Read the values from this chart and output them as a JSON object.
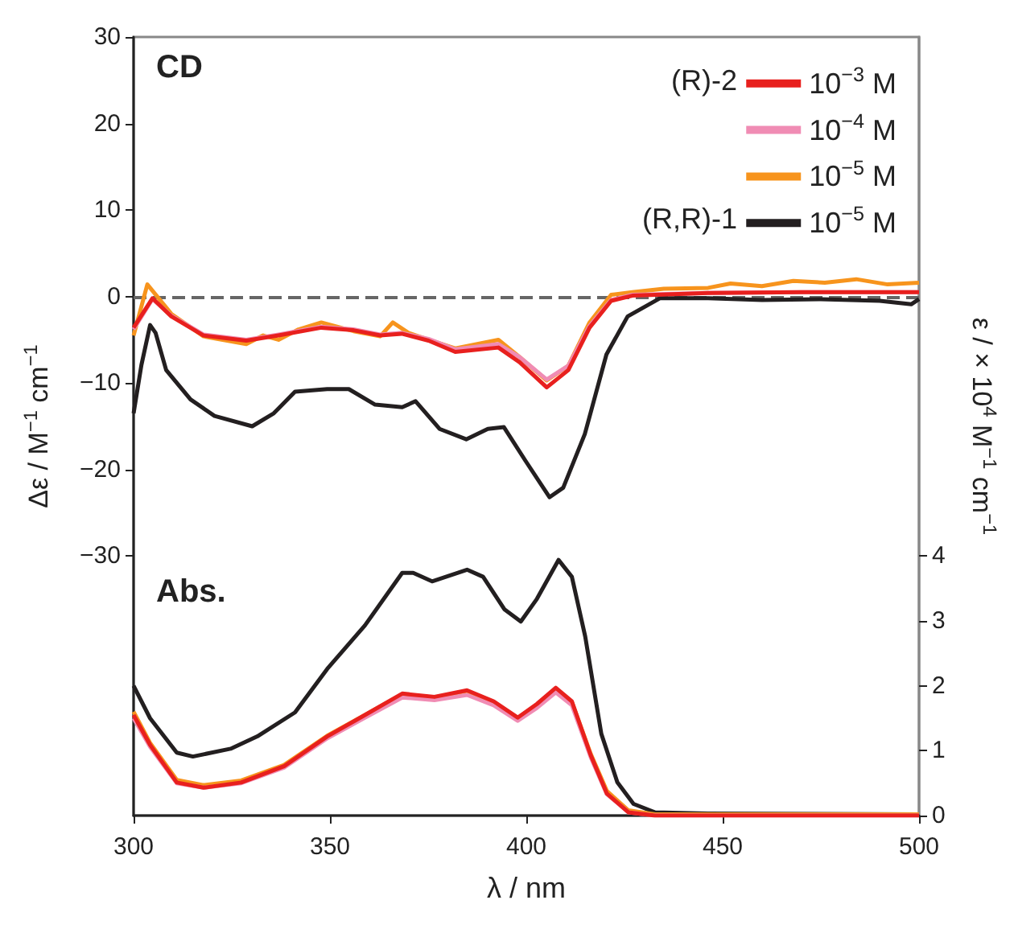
{
  "chart_data": {
    "type": "line",
    "xlabel": "λ / nm",
    "ylabel": "Δε / M$^{−1}$ cm$^{−1}$",
    "y2label": "ε / × 10$^{4}$ M$^{−1}$ cm$^{−1}$",
    "annotations": [
      "CD",
      "Abs.",
      "(R)-2",
      "(R,R)-1"
    ],
    "xlim": [
      300,
      500
    ],
    "xticks": [
      300,
      350,
      400,
      450,
      500
    ],
    "ylim": [
      -60,
      30
    ],
    "yticks": [
      -30,
      -20,
      -10,
      0,
      10,
      20,
      30
    ],
    "y2lim": [
      0,
      12
    ],
    "y2ticks": [
      0,
      1,
      2,
      3,
      4
    ],
    "legend": "top right",
    "grid": false,
    "ref_lines": [
      {
        "axis": "y",
        "value": 0,
        "color": "#666666",
        "line_style": "dashed"
      }
    ],
    "series": [
      {
        "name": "10$^{−3}$ M",
        "color": "#e8201e",
        "x": [
          300,
          304.8,
          309.6,
          317.8,
          328.7,
          336.9,
          347.8,
          356,
          362.8,
          368.3,
          375.1,
          381.9,
          392.9,
          398.3,
          405.2,
          410.7,
          416.1,
          421.6,
          427,
          446.3,
          470,
          500
        ],
        "values": [
          -3.6,
          -0.2,
          -2.3,
          -4.5,
          -5.1,
          -4.5,
          -3.6,
          -3.9,
          -4.5,
          -4.3,
          -5.1,
          -6.4,
          -5.9,
          -7.6,
          -10.5,
          -8.5,
          -3.6,
          -0.5,
          0.1,
          0.4,
          0.5,
          0.5
        ]
      },
      {
        "name": "10$^{−4}$ M",
        "color": "#f08cb4",
        "x": [
          300,
          304.8,
          309.6,
          317.8,
          328.7,
          336.9,
          347.8,
          356,
          362.8,
          368.3,
          375.1,
          381.9,
          392.9,
          398.3,
          405.2,
          410.7,
          416.1,
          421.6,
          427,
          446.3,
          470,
          500
        ],
        "values": [
          -3.8,
          -0.3,
          -2.2,
          -4.4,
          -5.0,
          -4.4,
          -3.5,
          -3.8,
          -4.4,
          -4.2,
          -4.9,
          -6.1,
          -5.5,
          -7.0,
          -9.6,
          -8.0,
          -3.4,
          -0.4,
          0.2,
          0.4,
          0.5,
          0.5
        ]
      },
      {
        "name": "10$^{−5}$ M",
        "color": "#f7941d",
        "x": [
          300,
          303.5,
          309.6,
          317.8,
          328.7,
          333,
          336.9,
          342,
          347.8,
          356,
          362.8,
          366,
          370,
          375.1,
          381.9,
          392.9,
          398.3,
          405.2,
          410.7,
          416.1,
          421.6,
          427,
          435,
          446.3,
          452,
          460,
          468,
          476,
          484,
          492,
          500
        ],
        "values": [
          -4.5,
          1.4,
          -2.0,
          -4.6,
          -5.5,
          -4.5,
          -5.0,
          -3.8,
          -3.0,
          -4.0,
          -4.6,
          -3.0,
          -4.2,
          -5.0,
          -6.0,
          -5.0,
          -7.0,
          -9.7,
          -8.0,
          -3.0,
          0.2,
          0.5,
          0.9,
          1.0,
          1.5,
          1.2,
          1.8,
          1.6,
          2.0,
          1.4,
          1.6
        ]
      },
      {
        "name": "10$^{−5}$ M",
        "color": "#231f20",
        "x": [
          300,
          302,
          304.2,
          305.6,
          308.3,
          314.5,
          320.6,
          330.2,
          335.7,
          341.1,
          349.3,
          354.8,
          361.5,
          368.4,
          371.8,
          377.9,
          384.7,
          390.2,
          394.3,
          399.8,
          405.9,
          409.4,
          414.9,
          420.4,
          425.8,
          434,
          446.3,
          460,
          475,
          490,
          498,
          500
        ],
        "values": [
          -13.5,
          -7.9,
          -3.3,
          -4.2,
          -8.5,
          -11.9,
          -13.8,
          -15.0,
          -13.5,
          -11.0,
          -10.7,
          -10.7,
          -12.5,
          -12.8,
          -12.1,
          -15.3,
          -16.5,
          -15.3,
          -15.1,
          -19.0,
          -23.2,
          -22.1,
          -15.9,
          -6.7,
          -2.3,
          -0.2,
          -0.2,
          -0.4,
          -0.3,
          -0.5,
          -0.9,
          -0.3
        ]
      },
      {
        "color": "#e8201e",
        "axis": "y2",
        "x": [
          300,
          304.2,
          311,
          317.8,
          327.4,
          338.3,
          349.3,
          358.9,
          368.4,
          376.6,
          384.9,
          391.7,
          397.8,
          402.7,
          407.5,
          411.6,
          416.4,
          420.5,
          426,
          432.8,
          500
        ],
        "values": [
          1.55,
          1.09,
          0.51,
          0.43,
          0.51,
          0.76,
          1.22,
          1.55,
          1.88,
          1.83,
          1.93,
          1.76,
          1.51,
          1.72,
          1.97,
          1.76,
          0.93,
          0.34,
          0.05,
          0,
          0
        ]
      },
      {
        "color": "#f08cb4",
        "axis": "y2",
        "x": [
          300,
          304.2,
          311,
          317.8,
          327.4,
          338.3,
          349.3,
          358.9,
          368.4,
          376.6,
          384.9,
          391.7,
          397.8,
          402.7,
          407.5,
          411.6,
          416.4,
          420.5,
          426,
          432.8,
          500
        ],
        "values": [
          1.5,
          1.06,
          0.5,
          0.43,
          0.5,
          0.74,
          1.19,
          1.51,
          1.82,
          1.78,
          1.86,
          1.7,
          1.46,
          1.66,
          1.9,
          1.7,
          0.9,
          0.33,
          0.05,
          0,
          0
        ]
      },
      {
        "color": "#f7941d",
        "axis": "y2",
        "x": [
          300,
          304.2,
          311,
          317.8,
          327.4,
          338.3,
          349.3,
          358.9,
          368.4,
          376.6,
          384.9,
          391.7,
          397.8,
          402.7,
          407.5,
          411.6,
          416.4,
          420.5,
          426,
          432.8,
          500
        ],
        "values": [
          1.6,
          1.12,
          0.55,
          0.47,
          0.54,
          0.78,
          1.23,
          1.55,
          1.87,
          1.82,
          1.92,
          1.75,
          1.5,
          1.71,
          1.95,
          1.75,
          0.95,
          0.38,
          0.08,
          0.02,
          0.02
        ]
      },
      {
        "color": "#231f20",
        "axis": "y2",
        "x": [
          300,
          304.2,
          311,
          315.1,
          324.7,
          331.5,
          341.1,
          349.3,
          358.9,
          368.4,
          371.2,
          376,
          384.9,
          389,
          394.4,
          398.6,
          402.7,
          408.2,
          411.6,
          415,
          419.1,
          423.2,
          427.3,
          432.8,
          446.3,
          500
        ],
        "values": [
          2.0,
          1.5,
          0.97,
          0.91,
          1.03,
          1.22,
          1.59,
          2.26,
          2.93,
          3.74,
          3.74,
          3.61,
          3.79,
          3.68,
          3.18,
          2.99,
          3.34,
          3.94,
          3.68,
          2.76,
          1.26,
          0.51,
          0.18,
          0.05,
          0.03,
          0.02
        ]
      }
    ]
  }
}
